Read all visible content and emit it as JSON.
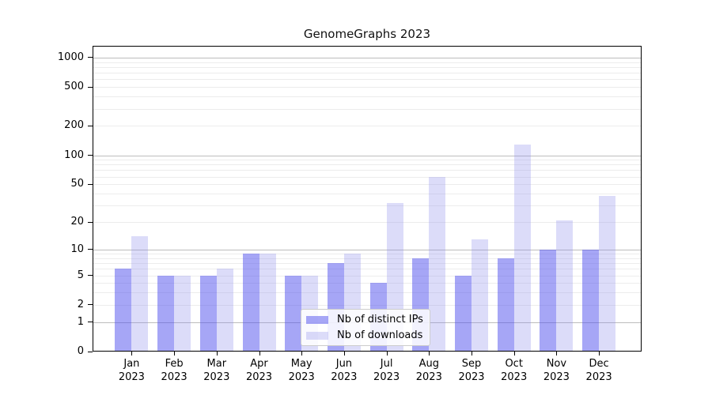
{
  "figure": {
    "title": "GenomeGraphs 2023"
  },
  "chart_data": {
    "type": "bar",
    "title": "GenomeGraphs 2023",
    "xlabel": "",
    "ylabel": "",
    "categories": [
      "Jan 2023",
      "Feb 2023",
      "Mar 2023",
      "Apr 2023",
      "May 2023",
      "Jun 2023",
      "Jul 2023",
      "Aug 2023",
      "Sep 2023",
      "Oct 2023",
      "Nov 2023",
      "Dec 2023"
    ],
    "series": [
      {
        "name": "Nb of distinct IPs",
        "color": "#a6a6f6",
        "fill": "rgba(77,77,237,0.5)",
        "values": [
          6,
          5,
          5,
          9,
          5,
          7,
          4,
          8,
          5,
          8,
          10,
          10
        ]
      },
      {
        "name": "Nb of downloads",
        "color": "#dcdcf9",
        "fill": "rgba(138,138,235,0.3)",
        "values": [
          14,
          5,
          6,
          9,
          5,
          9,
          32,
          60,
          13,
          128,
          21,
          38
        ]
      }
    ],
    "y_scale": "log10(1+x)",
    "y_ticks": [
      0,
      1,
      2,
      5,
      10,
      20,
      50,
      100,
      200,
      500,
      1000
    ],
    "y_major_gridlines": [
      1,
      10,
      100,
      1000
    ],
    "y_minor_gridlines": [
      2,
      3,
      4,
      5,
      6,
      7,
      8,
      9,
      20,
      30,
      40,
      50,
      60,
      70,
      80,
      90,
      200,
      300,
      400,
      500,
      600,
      700,
      800,
      900
    ],
    "ylim": [
      0,
      1300
    ],
    "grid": "horizontal",
    "legend_position": "lower center"
  }
}
